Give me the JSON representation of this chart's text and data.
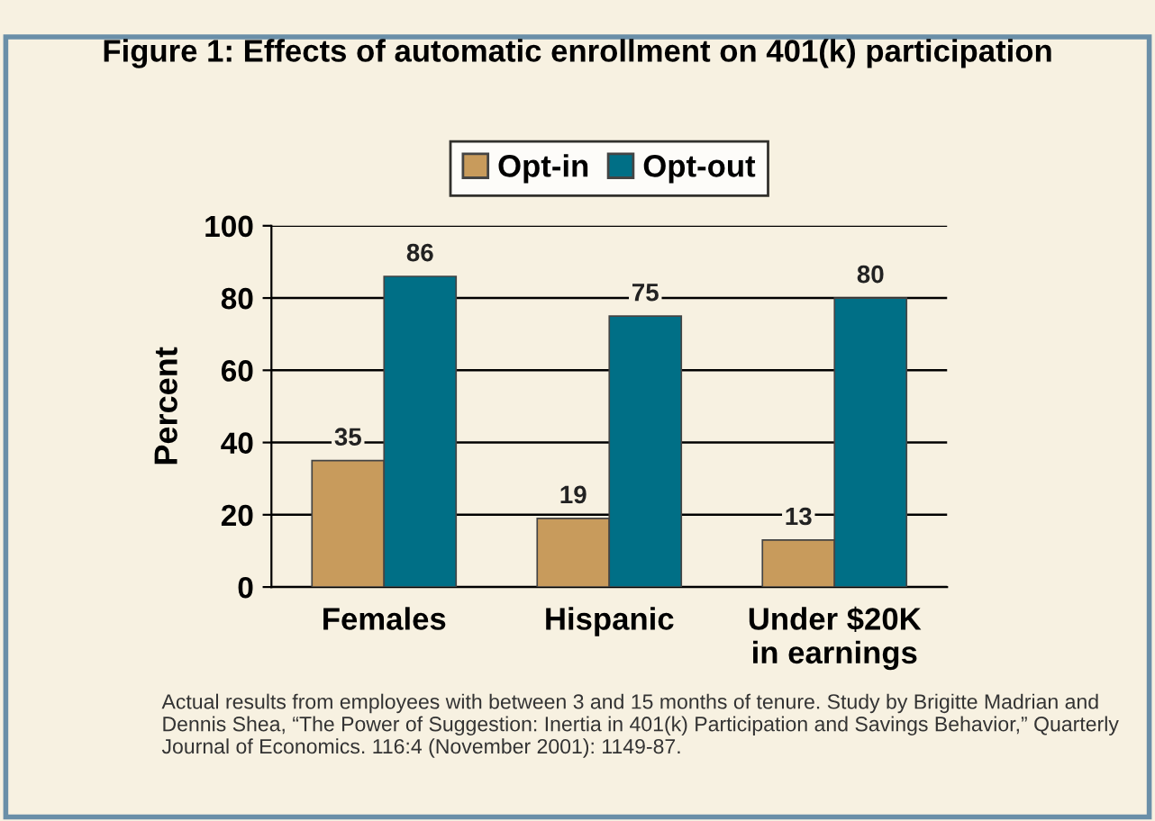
{
  "chart_data": {
    "type": "bar",
    "title": "Figure 1: Effects of automatic enrollment on 401(k) participation",
    "categories": [
      "Females",
      "Hispanic",
      "Under $20K\nin earnings"
    ],
    "series": [
      {
        "name": "Opt-in",
        "color": "#c89b5c",
        "values": [
          35,
          19,
          13
        ]
      },
      {
        "name": "Opt-out",
        "color": "#006f86",
        "values": [
          86,
          75,
          80
        ]
      }
    ],
    "ylabel": "Percent",
    "ylim": [
      0,
      100
    ],
    "yticks": [
      0,
      20,
      40,
      60,
      80,
      100
    ],
    "grid": "y",
    "legend": "top",
    "data_labels": true,
    "annotations": [
      "Actual results from employees with between 3 and 15 months of tenure. Study by Brigitte Madrian and Dennis Shea, “The Power of Suggestion: Inertia in 401(k) Participation and Savings Behavior,” Quarterly Journal of Economics. 116:4 (November 2001): 1149-87."
    ]
  }
}
